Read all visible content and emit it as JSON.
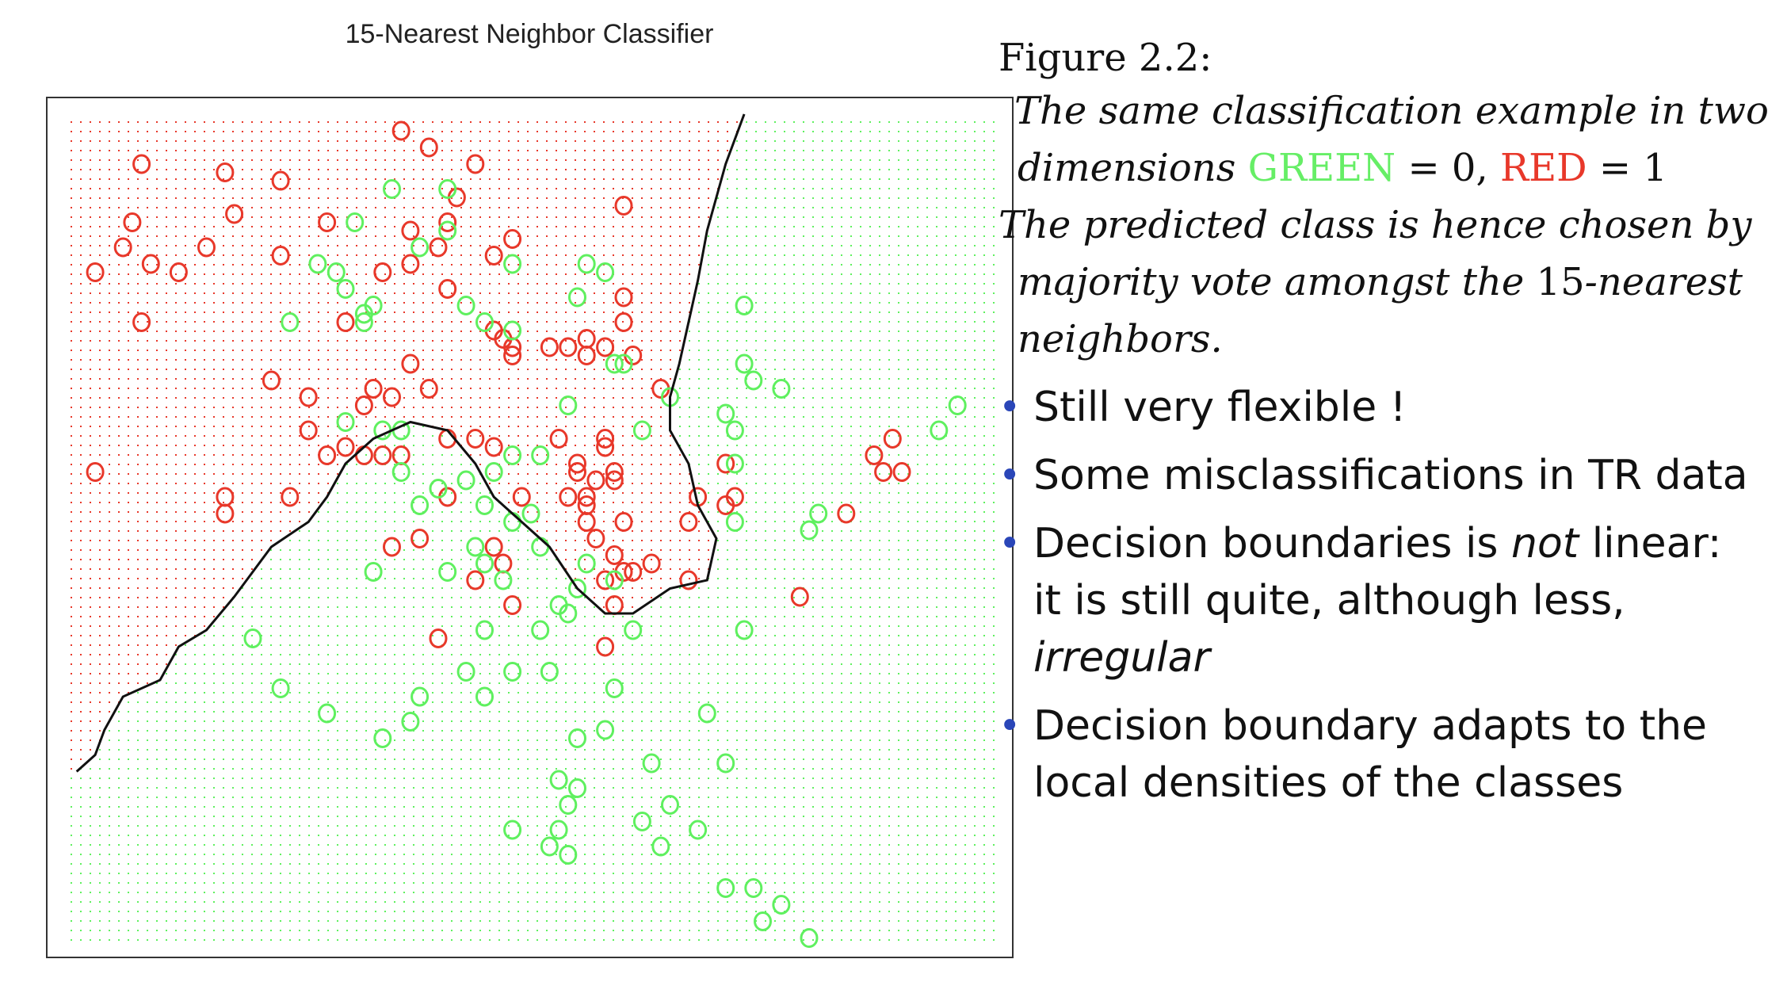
{
  "chart_data": {
    "type": "scatter",
    "title": "15-Nearest Neighbor Classifier",
    "xlabel": "",
    "ylabel": "",
    "xlim": [
      0,
      100
    ],
    "ylim": [
      0,
      100
    ],
    "background_grid": "dotted class-colored decision regions",
    "colors": {
      "green": "#5ff05f",
      "red": "#e8382a",
      "boundary": "#111111"
    },
    "series": [
      {
        "class": "RED",
        "points": [
          [
            8,
            94
          ],
          [
            17,
            93
          ],
          [
            23,
            92
          ],
          [
            36,
            98
          ],
          [
            39,
            96
          ],
          [
            44,
            94
          ],
          [
            42,
            90
          ],
          [
            60,
            89
          ],
          [
            7,
            87
          ],
          [
            18,
            88
          ],
          [
            28,
            87
          ],
          [
            37,
            86
          ],
          [
            41,
            87
          ],
          [
            48,
            85
          ],
          [
            6,
            84
          ],
          [
            15,
            84
          ],
          [
            23,
            83
          ],
          [
            40,
            84
          ],
          [
            46,
            83
          ],
          [
            37,
            82
          ],
          [
            9,
            82
          ],
          [
            12,
            81
          ],
          [
            34,
            81
          ],
          [
            3,
            81
          ],
          [
            41,
            79
          ],
          [
            60,
            78
          ],
          [
            8,
            75
          ],
          [
            30,
            75
          ],
          [
            46,
            74
          ],
          [
            60,
            75
          ],
          [
            47,
            73
          ],
          [
            56,
            73
          ],
          [
            48,
            72
          ],
          [
            52,
            72
          ],
          [
            54,
            72
          ],
          [
            58,
            72
          ],
          [
            56,
            71
          ],
          [
            61,
            71
          ],
          [
            37,
            70
          ],
          [
            48,
            71
          ],
          [
            22,
            68
          ],
          [
            33,
            67
          ],
          [
            39,
            67
          ],
          [
            35,
            66
          ],
          [
            64,
            67
          ],
          [
            26,
            66
          ],
          [
            32,
            65
          ],
          [
            26,
            62
          ],
          [
            41,
            61
          ],
          [
            44,
            61
          ],
          [
            46,
            60
          ],
          [
            53,
            61
          ],
          [
            58,
            61
          ],
          [
            58,
            60
          ],
          [
            30,
            60
          ],
          [
            3,
            57
          ],
          [
            28,
            59
          ],
          [
            32,
            59
          ],
          [
            34,
            59
          ],
          [
            36,
            59
          ],
          [
            55,
            58
          ],
          [
            57,
            56
          ],
          [
            59,
            56
          ],
          [
            59,
            57
          ],
          [
            55,
            57
          ],
          [
            71,
            58
          ],
          [
            49,
            54
          ],
          [
            56,
            54
          ],
          [
            54,
            54
          ],
          [
            17,
            54
          ],
          [
            24,
            54
          ],
          [
            41,
            54
          ],
          [
            71,
            53
          ],
          [
            56,
            53
          ],
          [
            68,
            54
          ],
          [
            72,
            54
          ],
          [
            90,
            57
          ],
          [
            88,
            57
          ],
          [
            87,
            59
          ],
          [
            89,
            61
          ],
          [
            56,
            51
          ],
          [
            60,
            51
          ],
          [
            35,
            48
          ],
          [
            38,
            49
          ],
          [
            84,
            52
          ],
          [
            46,
            48
          ],
          [
            67,
            51
          ],
          [
            59,
            47
          ],
          [
            57,
            49
          ],
          [
            47,
            46
          ],
          [
            60,
            45
          ],
          [
            61,
            45
          ],
          [
            63,
            46
          ],
          [
            58,
            44
          ],
          [
            67,
            44
          ],
          [
            79,
            42
          ],
          [
            48,
            41
          ],
          [
            59,
            41
          ],
          [
            44,
            44
          ],
          [
            58,
            36
          ],
          [
            40,
            37
          ],
          [
            17,
            52
          ]
        ]
      },
      {
        "class": "GREEN",
        "points": [
          [
            35,
            91
          ],
          [
            41,
            91
          ],
          [
            31,
            87
          ],
          [
            41,
            86
          ],
          [
            38,
            84
          ],
          [
            27,
            82
          ],
          [
            29,
            81
          ],
          [
            30,
            79
          ],
          [
            32,
            76
          ],
          [
            24,
            75
          ],
          [
            48,
            82
          ],
          [
            56,
            82
          ],
          [
            58,
            81
          ],
          [
            55,
            78
          ],
          [
            73,
            77
          ],
          [
            33,
            77
          ],
          [
            32,
            75
          ],
          [
            43,
            77
          ],
          [
            45,
            75
          ],
          [
            48,
            74
          ],
          [
            59,
            70
          ],
          [
            60,
            70
          ],
          [
            74,
            68
          ],
          [
            73,
            70
          ],
          [
            77,
            67
          ],
          [
            30,
            63
          ],
          [
            34,
            62
          ],
          [
            36,
            62
          ],
          [
            54,
            65
          ],
          [
            65,
            66
          ],
          [
            71,
            64
          ],
          [
            72,
            62
          ],
          [
            48,
            59
          ],
          [
            36,
            57
          ],
          [
            46,
            57
          ],
          [
            51,
            59
          ],
          [
            43,
            56
          ],
          [
            40,
            55
          ],
          [
            50,
            52
          ],
          [
            45,
            53
          ],
          [
            48,
            51
          ],
          [
            51,
            48
          ],
          [
            44,
            48
          ],
          [
            62,
            62
          ],
          [
            72,
            58
          ],
          [
            72,
            51
          ],
          [
            80,
            50
          ],
          [
            81,
            52
          ],
          [
            45,
            46
          ],
          [
            56,
            46
          ],
          [
            59,
            44
          ],
          [
            33,
            45
          ],
          [
            41,
            45
          ],
          [
            47,
            44
          ],
          [
            55,
            43
          ],
          [
            53,
            41
          ],
          [
            54,
            40
          ],
          [
            45,
            38
          ],
          [
            51,
            38
          ],
          [
            61,
            38
          ],
          [
            73,
            38
          ],
          [
            43,
            33
          ],
          [
            48,
            33
          ],
          [
            52,
            33
          ],
          [
            59,
            31
          ],
          [
            69,
            28
          ],
          [
            38,
            30
          ],
          [
            45,
            30
          ],
          [
            55,
            25
          ],
          [
            58,
            26
          ],
          [
            71,
            22
          ],
          [
            63,
            22
          ],
          [
            53,
            20
          ],
          [
            55,
            19
          ],
          [
            54,
            17
          ],
          [
            65,
            17
          ],
          [
            62,
            15
          ],
          [
            48,
            14
          ],
          [
            52,
            12
          ],
          [
            64,
            12
          ],
          [
            68,
            14
          ],
          [
            54,
            11
          ],
          [
            71,
            7
          ],
          [
            74,
            7
          ],
          [
            77,
            5
          ],
          [
            75,
            3
          ],
          [
            80,
            1
          ],
          [
            53,
            14
          ],
          [
            23,
            31
          ],
          [
            28,
            28
          ],
          [
            34,
            25
          ],
          [
            37,
            27
          ],
          [
            94,
            62
          ],
          [
            96,
            65
          ],
          [
            20,
            37
          ],
          [
            38,
            53
          ]
        ]
      }
    ],
    "boundary": [
      [
        1,
        21
      ],
      [
        3,
        23
      ],
      [
        4,
        26
      ],
      [
        6,
        30
      ],
      [
        10,
        32
      ],
      [
        12,
        36
      ],
      [
        15,
        38
      ],
      [
        18,
        42
      ],
      [
        22,
        48
      ],
      [
        26,
        51
      ],
      [
        28,
        54
      ],
      [
        30,
        58
      ],
      [
        33,
        61
      ],
      [
        37,
        63
      ],
      [
        41,
        62
      ],
      [
        44,
        58
      ],
      [
        46,
        54
      ],
      [
        49,
        51
      ],
      [
        52,
        48
      ],
      [
        55,
        43
      ],
      [
        58,
        40
      ],
      [
        61,
        40
      ],
      [
        65,
        43
      ],
      [
        69,
        44
      ],
      [
        70,
        49
      ],
      [
        68,
        53
      ],
      [
        67,
        58
      ],
      [
        65,
        62
      ],
      [
        65,
        66
      ],
      [
        66,
        70
      ],
      [
        67,
        75
      ],
      [
        68,
        80
      ],
      [
        69,
        86
      ],
      [
        70,
        90
      ],
      [
        71,
        94
      ],
      [
        72,
        97
      ],
      [
        73,
        100
      ]
    ]
  },
  "caption": {
    "heading": "Figure 2.2:",
    "line1": "The same classification example in two",
    "line2_a": "dimensions",
    "green_word": "GREEN",
    "eq0": "= 0,",
    "red_word": "RED",
    "eq1": "= 1",
    "line3": "The predicted class is hence chosen by",
    "line4_a": "majority vote amongst the",
    "line4_num": "15",
    "line4_b": "-nearest",
    "line5": "neighbors."
  },
  "bullets": {
    "b1": "Still very flexible !",
    "b2": "Some misclassifications in TR data",
    "b3_a": "Decision boundaries is",
    "b3_em": "not",
    "b3_b": "linear:",
    "b3_c": "it is still quite, although less,",
    "b3_em2": "irregular",
    "b4_a": "Decision boundary adapts to the",
    "b4_b": "local densities of the classes"
  }
}
